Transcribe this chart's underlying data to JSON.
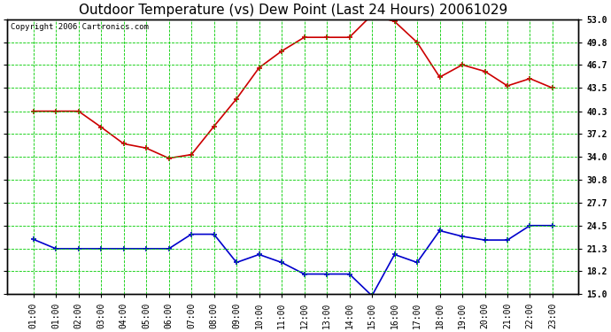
{
  "title": "Outdoor Temperature (vs) Dew Point (Last 24 Hours) 20061029",
  "copyright": "Copyright 2006 Cartronics.com",
  "x_labels": [
    "01:00",
    "01:00",
    "02:00",
    "03:00",
    "04:00",
    "05:00",
    "06:00",
    "07:00",
    "08:00",
    "09:00",
    "10:00",
    "11:00",
    "12:00",
    "13:00",
    "14:00",
    "15:00",
    "16:00",
    "17:00",
    "18:00",
    "19:00",
    "20:00",
    "21:00",
    "22:00",
    "23:00"
  ],
  "temp_data": [
    40.3,
    40.3,
    40.3,
    38.1,
    35.8,
    35.2,
    33.8,
    34.3,
    38.2,
    42.0,
    46.3,
    48.6,
    50.5,
    50.5,
    50.5,
    53.6,
    52.7,
    49.8,
    45.0,
    46.7,
    45.8,
    43.8,
    44.8,
    43.5
  ],
  "dew_data": [
    22.6,
    21.3,
    21.3,
    21.3,
    21.3,
    21.3,
    21.3,
    23.3,
    23.3,
    19.4,
    20.5,
    19.4,
    17.8,
    17.8,
    17.8,
    14.8,
    20.5,
    19.4,
    23.8,
    23.0,
    22.5,
    22.5,
    24.5,
    24.5
  ],
  "temp_color": "#cc0000",
  "dew_color": "#0000cc",
  "bg_color": "#ffffff",
  "plot_bg_color": "#ffffff",
  "grid_color": "#00cc00",
  "ylim": [
    15.0,
    53.0
  ],
  "yticks": [
    15.0,
    18.2,
    21.3,
    24.5,
    27.7,
    30.8,
    34.0,
    37.2,
    40.3,
    43.5,
    46.7,
    49.8,
    53.0
  ],
  "title_fontsize": 11,
  "copyright_fontsize": 6.5,
  "tick_fontsize": 7,
  "marker_size": 4,
  "line_width": 1.2
}
